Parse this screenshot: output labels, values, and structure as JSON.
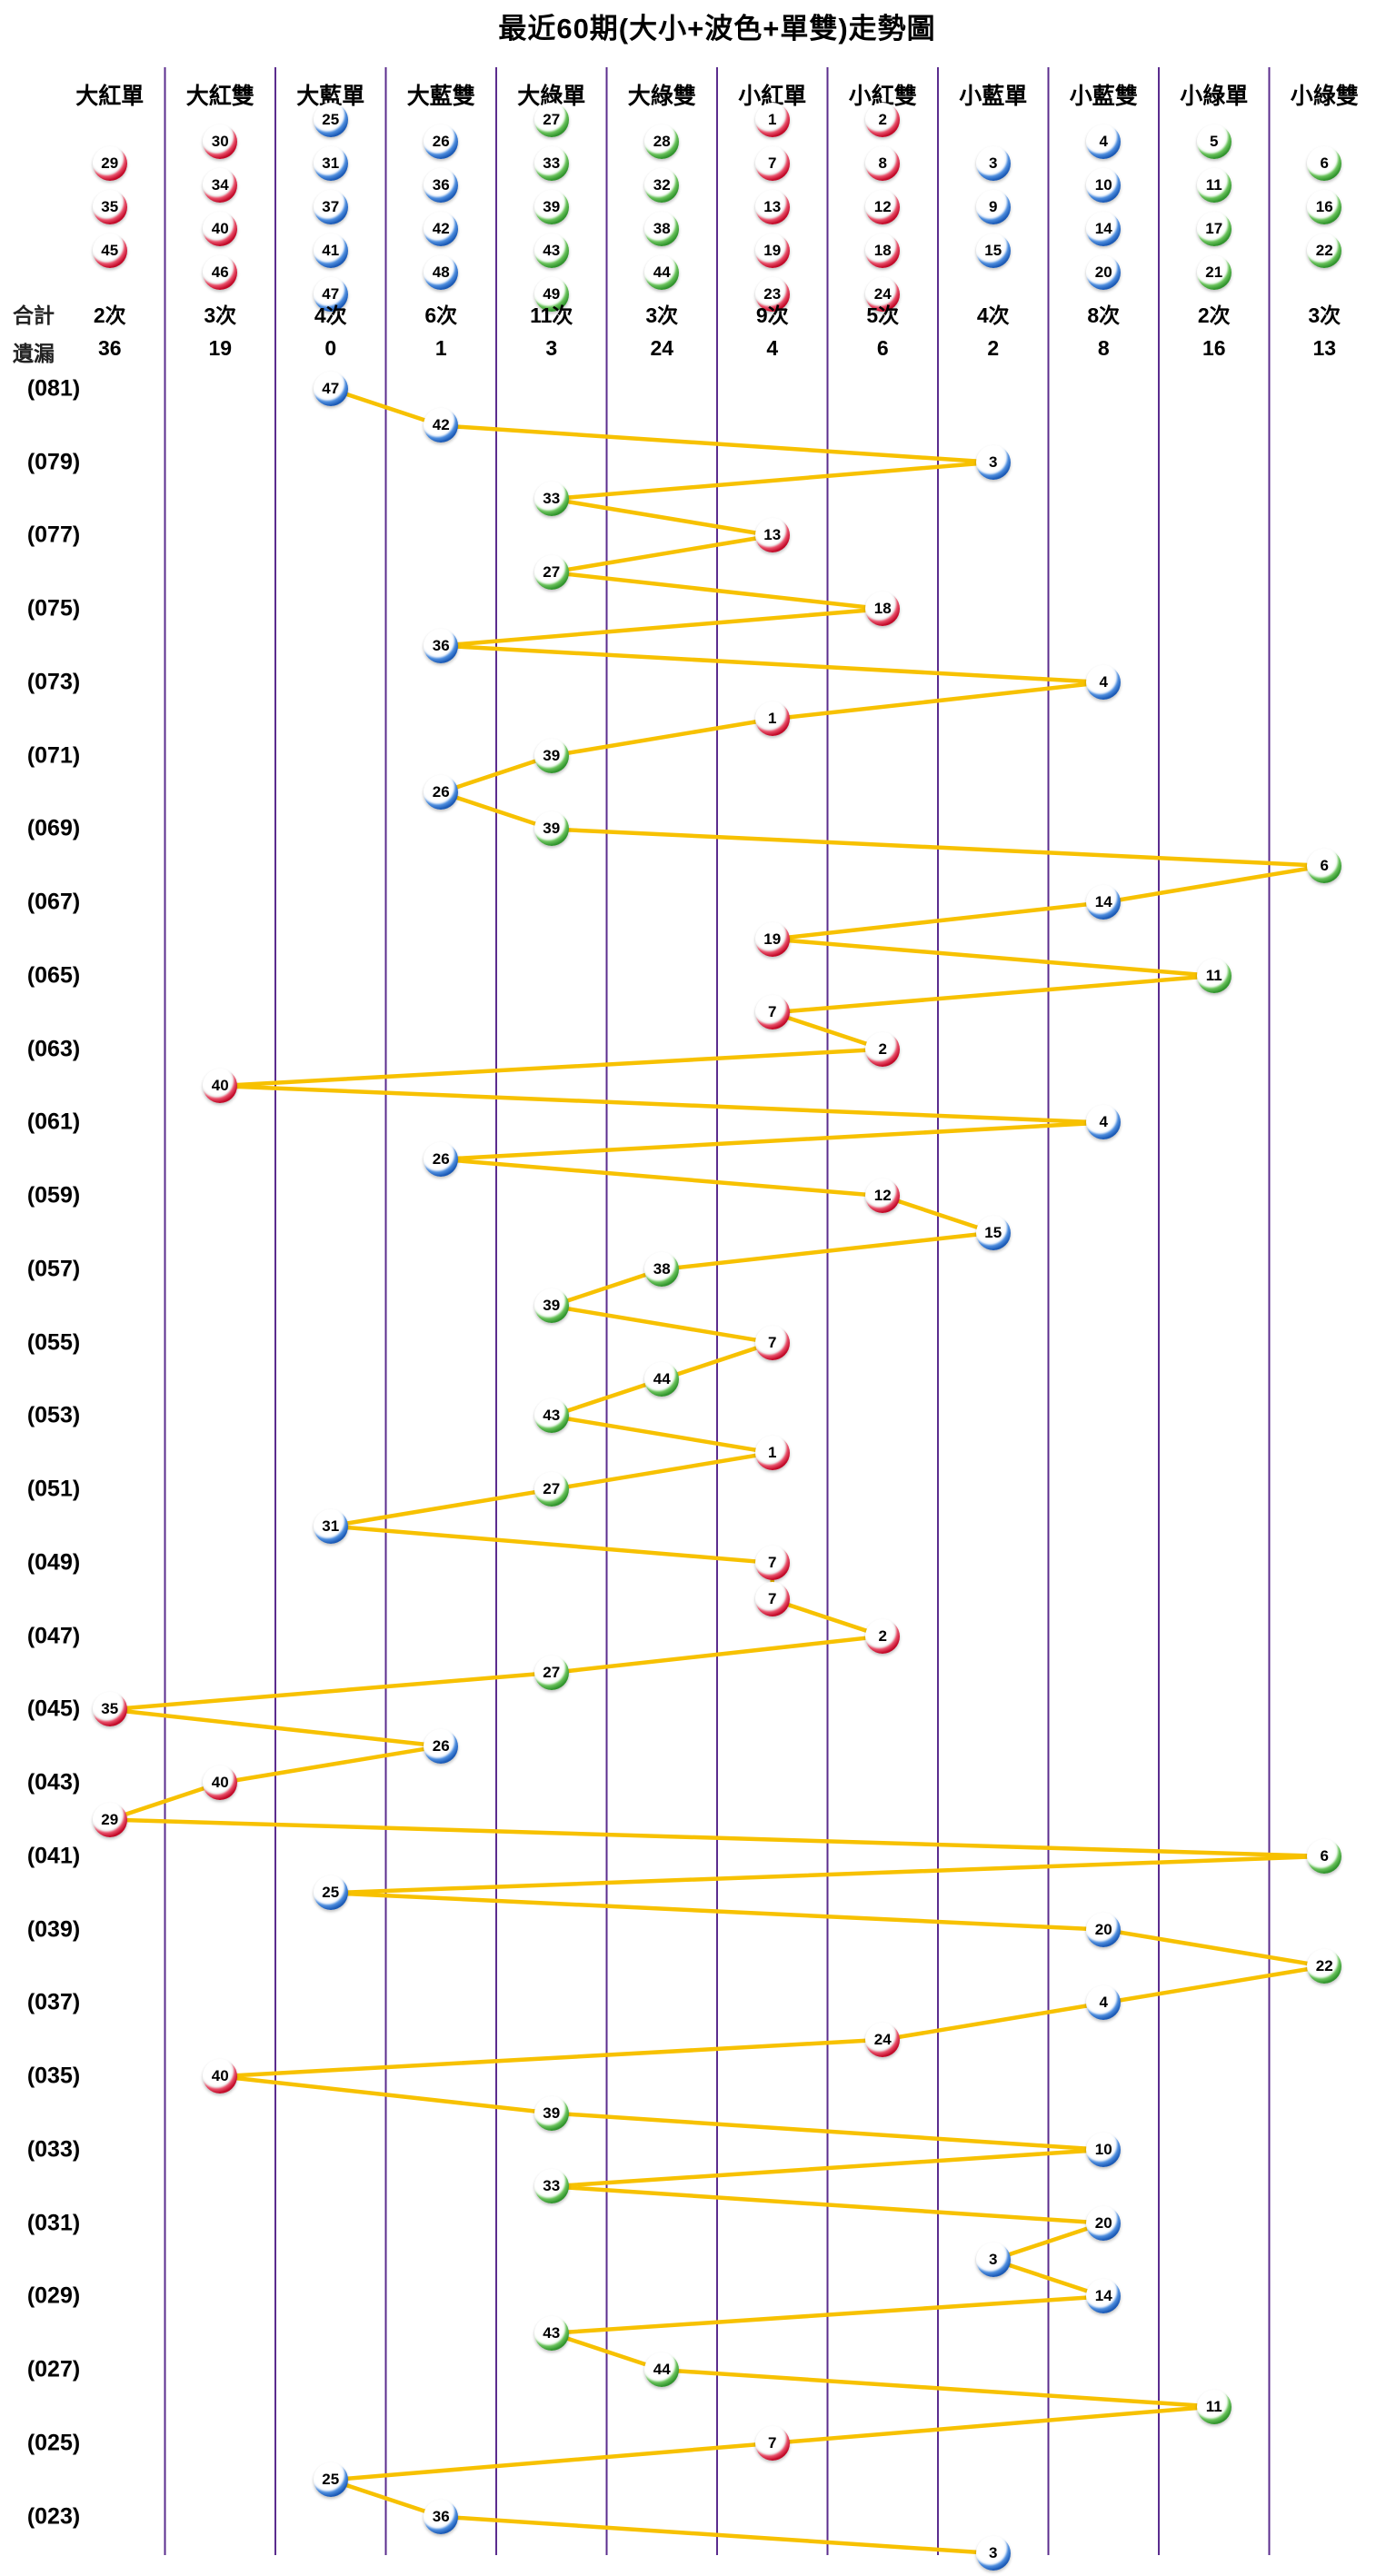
{
  "title": "最近60期(大小+波色+單雙)走勢圖",
  "colors": {
    "red": "#c40b2a",
    "blue": "#1d5cb8",
    "green": "#33962f",
    "trend_line": "#f7c100",
    "separator": "#5b2d8e",
    "text": "#000000"
  },
  "stats_labels": {
    "total": "合計",
    "miss": "遺漏"
  },
  "chart_data": {
    "type": "line",
    "title": "最近60期(大小+波色+單雙)走勢圖",
    "legend_position": "top",
    "grid": "vertical-column-separators",
    "x_axis": "12 categories (big/small + color + odd/even)",
    "y_axis": "period numbers (081) down to (022), newest on top",
    "columns": [
      {
        "label": "大紅單",
        "color": "red",
        "member_balls": [
          29,
          35,
          45
        ],
        "total": "2次",
        "miss": "36"
      },
      {
        "label": "大紅雙",
        "color": "red",
        "member_balls": [
          30,
          34,
          40,
          46
        ],
        "total": "3次",
        "miss": "19"
      },
      {
        "label": "大藍單",
        "color": "blue",
        "member_balls": [
          25,
          31,
          37,
          41,
          47
        ],
        "total": "4次",
        "miss": "0"
      },
      {
        "label": "大藍雙",
        "color": "blue",
        "member_balls": [
          26,
          36,
          42,
          48
        ],
        "total": "6次",
        "miss": "1"
      },
      {
        "label": "大綠單",
        "color": "green",
        "member_balls": [
          27,
          33,
          39,
          43,
          49
        ],
        "total": "11次",
        "miss": "3"
      },
      {
        "label": "大綠雙",
        "color": "green",
        "member_balls": [
          28,
          32,
          38,
          44
        ],
        "total": "3次",
        "miss": "24"
      },
      {
        "label": "小紅單",
        "color": "red",
        "member_balls": [
          1,
          7,
          13,
          19,
          23
        ],
        "total": "9次",
        "miss": "4"
      },
      {
        "label": "小紅雙",
        "color": "red",
        "member_balls": [
          2,
          8,
          12,
          18,
          24
        ],
        "total": "5次",
        "miss": "6"
      },
      {
        "label": "小藍單",
        "color": "blue",
        "member_balls": [
          3,
          9,
          15
        ],
        "total": "4次",
        "miss": "2"
      },
      {
        "label": "小藍雙",
        "color": "blue",
        "member_balls": [
          4,
          10,
          14,
          20
        ],
        "total": "8次",
        "miss": "8"
      },
      {
        "label": "小綠單",
        "color": "green",
        "member_balls": [
          5,
          11,
          17,
          21
        ],
        "total": "2次",
        "miss": "16"
      },
      {
        "label": "小綠雙",
        "color": "green",
        "member_balls": [
          6,
          16,
          22
        ],
        "total": "3次",
        "miss": "13"
      }
    ],
    "rows": [
      {
        "label": "(081)",
        "ball": 47,
        "col": 2
      },
      {
        "label": "",
        "ball": 42,
        "col": 3
      },
      {
        "label": "(079)",
        "ball": 3,
        "col": 8
      },
      {
        "label": "",
        "ball": 33,
        "col": 4
      },
      {
        "label": "(077)",
        "ball": 13,
        "col": 6
      },
      {
        "label": "",
        "ball": 27,
        "col": 4
      },
      {
        "label": "(075)",
        "ball": 18,
        "col": 7
      },
      {
        "label": "",
        "ball": 36,
        "col": 3
      },
      {
        "label": "(073)",
        "ball": 4,
        "col": 9
      },
      {
        "label": "",
        "ball": 1,
        "col": 6
      },
      {
        "label": "(071)",
        "ball": 39,
        "col": 4
      },
      {
        "label": "",
        "ball": 26,
        "col": 3
      },
      {
        "label": "(069)",
        "ball": 39,
        "col": 4
      },
      {
        "label": "",
        "ball": 6,
        "col": 11
      },
      {
        "label": "(067)",
        "ball": 14,
        "col": 9
      },
      {
        "label": "",
        "ball": 19,
        "col": 6
      },
      {
        "label": "(065)",
        "ball": 11,
        "col": 10
      },
      {
        "label": "",
        "ball": 7,
        "col": 6
      },
      {
        "label": "(063)",
        "ball": 2,
        "col": 7
      },
      {
        "label": "",
        "ball": 40,
        "col": 1
      },
      {
        "label": "(061)",
        "ball": 4,
        "col": 9
      },
      {
        "label": "",
        "ball": 26,
        "col": 3
      },
      {
        "label": "(059)",
        "ball": 12,
        "col": 7
      },
      {
        "label": "",
        "ball": 15,
        "col": 8
      },
      {
        "label": "(057)",
        "ball": 38,
        "col": 5
      },
      {
        "label": "",
        "ball": 39,
        "col": 4
      },
      {
        "label": "(055)",
        "ball": 7,
        "col": 6
      },
      {
        "label": "",
        "ball": 44,
        "col": 5
      },
      {
        "label": "(053)",
        "ball": 43,
        "col": 4
      },
      {
        "label": "",
        "ball": 1,
        "col": 6
      },
      {
        "label": "(051)",
        "ball": 27,
        "col": 4
      },
      {
        "label": "",
        "ball": 31,
        "col": 2
      },
      {
        "label": "(049)",
        "ball": 7,
        "col": 6
      },
      {
        "label": "",
        "ball": 7,
        "col": 6
      },
      {
        "label": "(047)",
        "ball": 2,
        "col": 7
      },
      {
        "label": "",
        "ball": 27,
        "col": 4
      },
      {
        "label": "(045)",
        "ball": 35,
        "col": 0
      },
      {
        "label": "",
        "ball": 26,
        "col": 3
      },
      {
        "label": "(043)",
        "ball": 40,
        "col": 1
      },
      {
        "label": "",
        "ball": 29,
        "col": 0
      },
      {
        "label": "(041)",
        "ball": 6,
        "col": 11
      },
      {
        "label": "",
        "ball": 25,
        "col": 2
      },
      {
        "label": "(039)",
        "ball": 20,
        "col": 9
      },
      {
        "label": "",
        "ball": 22,
        "col": 11
      },
      {
        "label": "(037)",
        "ball": 4,
        "col": 9
      },
      {
        "label": "",
        "ball": 24,
        "col": 7
      },
      {
        "label": "(035)",
        "ball": 40,
        "col": 1
      },
      {
        "label": "",
        "ball": 39,
        "col": 4
      },
      {
        "label": "(033)",
        "ball": 10,
        "col": 9
      },
      {
        "label": "",
        "ball": 33,
        "col": 4
      },
      {
        "label": "(031)",
        "ball": 20,
        "col": 9
      },
      {
        "label": "",
        "ball": 3,
        "col": 8
      },
      {
        "label": "(029)",
        "ball": 14,
        "col": 9
      },
      {
        "label": "",
        "ball": 43,
        "col": 4
      },
      {
        "label": "(027)",
        "ball": 44,
        "col": 5
      },
      {
        "label": "",
        "ball": 11,
        "col": 10
      },
      {
        "label": "(025)",
        "ball": 7,
        "col": 6
      },
      {
        "label": "",
        "ball": 25,
        "col": 2
      },
      {
        "label": "(023)",
        "ball": 36,
        "col": 3
      },
      {
        "label": "",
        "ball": 3,
        "col": 8
      }
    ]
  }
}
